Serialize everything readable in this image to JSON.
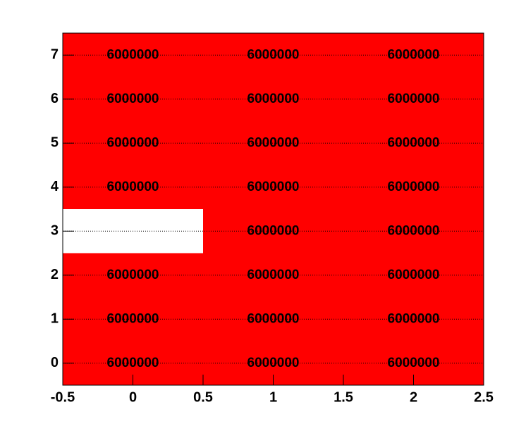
{
  "chart_data": {
    "type": "heatmap",
    "x": [
      0,
      1,
      2
    ],
    "y": [
      0,
      1,
      2,
      3,
      4,
      5,
      6,
      7
    ],
    "values": [
      [
        6000000,
        6000000,
        6000000
      ],
      [
        6000000,
        6000000,
        6000000
      ],
      [
        6000000,
        6000000,
        6000000
      ],
      [
        null,
        6000000,
        6000000
      ],
      [
        6000000,
        6000000,
        6000000
      ],
      [
        6000000,
        6000000,
        6000000
      ],
      [
        6000000,
        6000000,
        6000000
      ],
      [
        6000000,
        6000000,
        6000000
      ]
    ],
    "color": "#ff0000",
    "xlim": [
      -0.5,
      2.5
    ],
    "xticks": [
      -0.5,
      0,
      0.5,
      1,
      1.5,
      2,
      2.5
    ],
    "ylim": [
      -0.5,
      7.5
    ],
    "yticks": [
      0,
      1,
      2,
      3,
      4,
      5,
      6,
      7
    ],
    "grid": true
  }
}
